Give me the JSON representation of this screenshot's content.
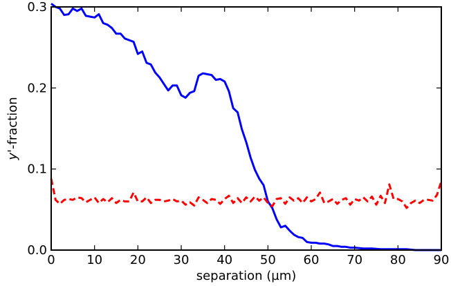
{
  "chart_data": {
    "type": "line",
    "title": "",
    "xlabel": "separation (µm)",
    "ylabel_italic_part": "y",
    "ylabel_rest": "'-fraction",
    "xlim": [
      0,
      90
    ],
    "ylim": [
      0,
      0.3
    ],
    "xticks": [
      0,
      10,
      20,
      30,
      40,
      50,
      60,
      70,
      80,
      90
    ],
    "xtick_labels": [
      "0",
      "10",
      "20",
      "30",
      "40",
      "50",
      "60",
      "70",
      "80",
      "90"
    ],
    "yticks": [
      0,
      0.1,
      0.2,
      0.3
    ],
    "ytick_labels": [
      "0.0",
      "0.1",
      "0.2",
      "0.3"
    ],
    "grid": false,
    "legend": false,
    "series": [
      {
        "color": "#0000ff",
        "style": "solid",
        "x": [
          0,
          1,
          2,
          3,
          4,
          5,
          6,
          7,
          8,
          9,
          10,
          11,
          12,
          13,
          14,
          15,
          16,
          17,
          18,
          19,
          20,
          21,
          22,
          23,
          24,
          25,
          26,
          27,
          28,
          29,
          30,
          31,
          32,
          33,
          34,
          35,
          36,
          37,
          38,
          39,
          40,
          41,
          42,
          43,
          44,
          45,
          46,
          47,
          48,
          49,
          50,
          51,
          52,
          53,
          54,
          55,
          56,
          57,
          58,
          59,
          60,
          61,
          62,
          63,
          64,
          65,
          66,
          67,
          68,
          69,
          70,
          72,
          74,
          76,
          78,
          80,
          82,
          84,
          86,
          88,
          90
        ],
        "y": [
          0.304,
          0.3,
          0.298,
          0.29,
          0.291,
          0.298,
          0.295,
          0.298,
          0.289,
          0.288,
          0.287,
          0.291,
          0.28,
          0.278,
          0.274,
          0.267,
          0.267,
          0.261,
          0.259,
          0.257,
          0.242,
          0.245,
          0.231,
          0.229,
          0.219,
          0.213,
          0.205,
          0.197,
          0.203,
          0.203,
          0.191,
          0.188,
          0.194,
          0.196,
          0.215,
          0.218,
          0.217,
          0.216,
          0.21,
          0.211,
          0.208,
          0.196,
          0.175,
          0.17,
          0.149,
          0.133,
          0.114,
          0.099,
          0.088,
          0.08,
          0.06,
          0.052,
          0.038,
          0.028,
          0.03,
          0.024,
          0.019,
          0.016,
          0.015,
          0.01,
          0.009,
          0.009,
          0.008,
          0.008,
          0.007,
          0.005,
          0.005,
          0.004,
          0.004,
          0.003,
          0.003,
          0.002,
          0.002,
          0.001,
          0.001,
          0.001,
          0.001,
          0.0,
          0.0,
          0.0,
          0.0
        ]
      },
      {
        "color": "#ff0000",
        "style": "dashed",
        "x": [
          0,
          1,
          2,
          3,
          4,
          5,
          6,
          7,
          8,
          9,
          10,
          11,
          12,
          13,
          14,
          15,
          16,
          17,
          18,
          19,
          20,
          21,
          22,
          23,
          24,
          25,
          26,
          27,
          28,
          29,
          30,
          31,
          32,
          33,
          34,
          35,
          36,
          37,
          38,
          39,
          40,
          41,
          42,
          43,
          44,
          45,
          46,
          47,
          48,
          49,
          50,
          51,
          52,
          53,
          54,
          55,
          56,
          57,
          58,
          59,
          60,
          61,
          62,
          63,
          64,
          65,
          66,
          67,
          68,
          69,
          70,
          71,
          72,
          73,
          74,
          75,
          76,
          77,
          78,
          79,
          80,
          81,
          82,
          83,
          84,
          85,
          86,
          87,
          88,
          89,
          90
        ],
        "y": [
          0.088,
          0.062,
          0.057,
          0.062,
          0.063,
          0.062,
          0.065,
          0.064,
          0.059,
          0.062,
          0.065,
          0.058,
          0.063,
          0.059,
          0.064,
          0.058,
          0.062,
          0.06,
          0.06,
          0.071,
          0.06,
          0.06,
          0.065,
          0.058,
          0.062,
          0.062,
          0.06,
          0.061,
          0.063,
          0.06,
          0.061,
          0.056,
          0.059,
          0.055,
          0.065,
          0.062,
          0.058,
          0.063,
          0.062,
          0.057,
          0.063,
          0.067,
          0.058,
          0.064,
          0.058,
          0.065,
          0.06,
          0.066,
          0.061,
          0.065,
          0.058,
          0.054,
          0.063,
          0.064,
          0.057,
          0.065,
          0.061,
          0.064,
          0.058,
          0.065,
          0.06,
          0.063,
          0.071,
          0.058,
          0.06,
          0.063,
          0.057,
          0.062,
          0.064,
          0.056,
          0.063,
          0.061,
          0.065,
          0.06,
          0.066,
          0.056,
          0.067,
          0.058,
          0.081,
          0.063,
          0.063,
          0.06,
          0.052,
          0.058,
          0.061,
          0.058,
          0.062,
          0.062,
          0.061,
          0.068,
          0.085
        ]
      }
    ]
  }
}
